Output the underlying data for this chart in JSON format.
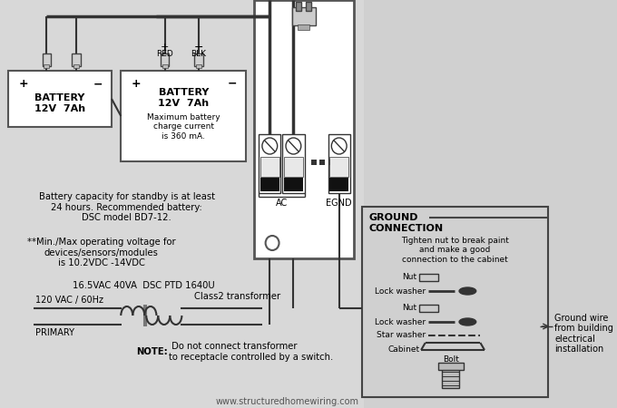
{
  "bg": "#d0d0d0",
  "panel_bg": "#f5f5f5",
  "battery1_text": "BATTERY\n12V  7Ah",
  "battery2_text": "BATTERY\n12V  7Ah",
  "battery2_note": "Maximum battery\ncharge current\nis 360 mA.",
  "note1": "Battery capacity for standby is at least\n24 hours. Recommended battery:\nDSC model BD7-12.",
  "note2": "**Min./Max operating voltage for\ndevices/sensors/modules\nis 10.2VDC -14VDC",
  "transformer_spec": "16.5VAC 40VA  DSC PTD 1640U",
  "primary1": "120 VAC / 60Hz",
  "primary2": "PRIMARY",
  "class2": "Class2 transformer",
  "note3_bold": "NOTE:",
  "note3_rest": " Do not connect transformer\nto receptacle controlled by a switch.",
  "ac": "AC",
  "egnd": "EGND",
  "gnd_title1": "GROUND",
  "gnd_title2": "CONNECTION",
  "gnd_note": "Tighten nut to break paint\nand make a good\nconnection to the cabinet",
  "gnd_items": [
    "Nut",
    "Lock washer",
    "Nut",
    "Lock washer",
    "Star washer",
    "Cabinet",
    "Bolt"
  ],
  "gnd_wire": "Ground wire\nfrom building\nelectrical\ninstallation",
  "website": "www.structuredhomewiring.com",
  "plus": "+",
  "minus": "−",
  "red": "RED",
  "blk": "BLK"
}
